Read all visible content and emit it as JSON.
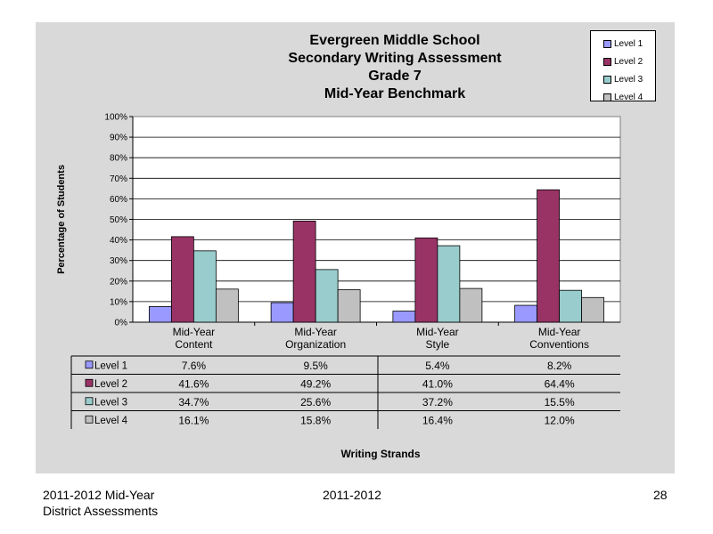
{
  "chart_data": {
    "type": "bar",
    "title_lines": [
      "Evergreen Middle School",
      "Secondary Writing Assessment",
      "Grade 7",
      "Mid-Year Benchmark"
    ],
    "ylabel": "Percentage of Students",
    "xlabel": "Writing Strands",
    "ylim": [
      0,
      100
    ],
    "y_ticks": [
      "0%",
      "10%",
      "20%",
      "30%",
      "40%",
      "50%",
      "60%",
      "70%",
      "80%",
      "90%",
      "100%"
    ],
    "categories": [
      [
        "Mid-Year",
        "Content"
      ],
      [
        "Mid-Year",
        "Organization"
      ],
      [
        "Mid-Year",
        "Style"
      ],
      [
        "Mid-Year",
        "Conventions"
      ]
    ],
    "series": [
      {
        "name": "Level 1",
        "color": "#9999ff",
        "values": [
          7.6,
          9.5,
          5.4,
          8.2
        ],
        "labels": [
          "7.6%",
          "9.5%",
          "5.4%",
          "8.2%"
        ]
      },
      {
        "name": "Level 2",
        "color": "#993366",
        "values": [
          41.6,
          49.2,
          41.0,
          64.4
        ],
        "labels": [
          "41.6%",
          "49.2%",
          "41.0%",
          "64.4%"
        ]
      },
      {
        "name": "Level 3",
        "color": "#99cccc",
        "values": [
          34.7,
          25.6,
          37.2,
          15.5
        ],
        "labels": [
          "34.7%",
          "25.6%",
          "37.2%",
          "15.5%"
        ]
      },
      {
        "name": "Level 4",
        "color": "#c0c0c0",
        "values": [
          16.1,
          15.8,
          16.4,
          12.0
        ],
        "labels": [
          "16.1%",
          "15.8%",
          "16.4%",
          "12.0%"
        ]
      }
    ],
    "grid": true,
    "legend_position": "top-right",
    "data_table": true
  },
  "footer": {
    "left_line1": "2011-2012  Mid-Year",
    "left_line2": "District Assessments",
    "center": "2011-2012",
    "page_number": "28"
  }
}
